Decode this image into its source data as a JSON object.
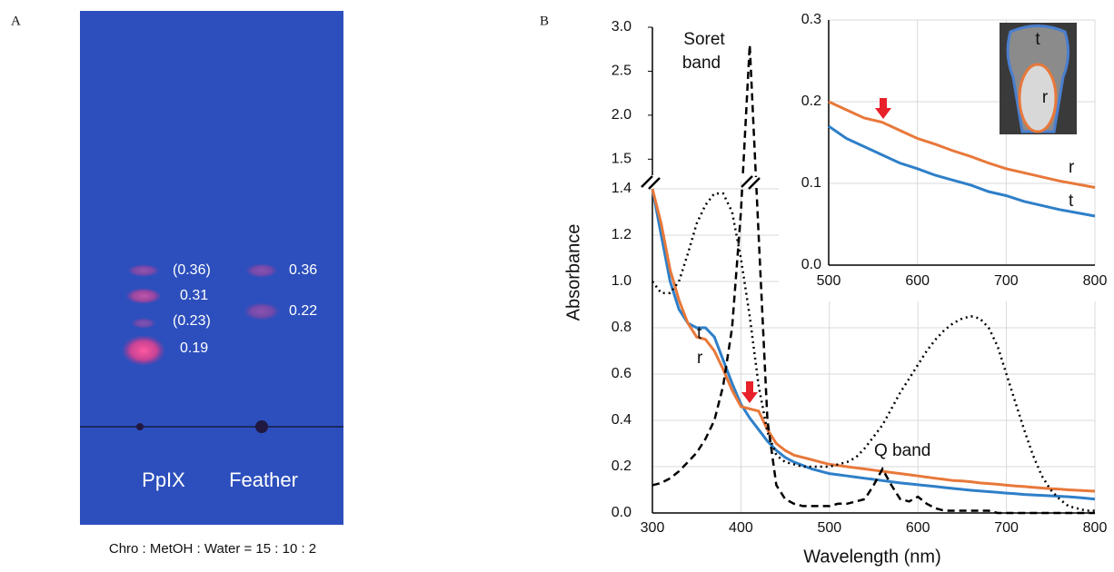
{
  "panel_a": {
    "label": "A",
    "lanes": [
      {
        "name": "PpIX",
        "rf_labels": [
          "(0.36)",
          "0.31",
          "(0.23)",
          "0.19"
        ]
      },
      {
        "name": "Feather",
        "rf_labels": [
          "0.36",
          "0.22"
        ]
      }
    ],
    "caption": "Chro : MetOH : Water = 15 : 10 : 2"
  },
  "chart_data": [
    {
      "type": "line",
      "panel_label": "B",
      "xlabel": "Wavelength (nm)",
      "ylabel": "Absorbance",
      "grid": true,
      "xlim": [
        300,
        800
      ],
      "xticks": [
        300,
        400,
        500,
        600,
        700,
        800
      ],
      "ylim": [
        0,
        1.4
      ],
      "yticks": [
        {
          "value": 0,
          "label": "0.0"
        },
        0.2,
        0.4,
        0.6,
        0.8,
        {
          "value": 1,
          "label": "1.0"
        },
        1.2,
        1.4
      ],
      "upper_ylim": [
        1.4,
        3.0
      ],
      "upper_yticks": [
        1.5,
        {
          "value": 2,
          "label": "2.0"
        },
        2.5,
        {
          "value": 3,
          "label": "3.0"
        }
      ],
      "annotations": [
        "Soret",
        "band",
        "Q band"
      ],
      "x": [
        300,
        310,
        320,
        330,
        340,
        350,
        360,
        370,
        380,
        390,
        400,
        410,
        420,
        430,
        440,
        450,
        460,
        470,
        480,
        490,
        500,
        510,
        520,
        530,
        540,
        550,
        560,
        570,
        580,
        590,
        600,
        610,
        620,
        630,
        640,
        650,
        660,
        670,
        680,
        690,
        700,
        710,
        720,
        730,
        740,
        750,
        760,
        770,
        780,
        790,
        800
      ],
      "series": [
        {
          "name": "t",
          "color": "#2e7fc8",
          "style": "solid",
          "values": [
            1.4,
            1.2,
            1.0,
            0.88,
            0.82,
            0.8,
            0.8,
            0.76,
            0.66,
            0.56,
            0.47,
            0.41,
            0.36,
            0.31,
            0.27,
            0.24,
            0.22,
            0.205,
            0.19,
            0.18,
            0.17,
            0.165,
            0.16,
            0.155,
            0.15,
            0.145,
            0.14,
            0.135,
            0.13,
            0.126,
            0.122,
            0.118,
            0.114,
            0.11,
            0.106,
            0.102,
            0.098,
            0.095,
            0.092,
            0.089,
            0.086,
            0.083,
            0.08,
            0.078,
            0.076,
            0.074,
            0.072,
            0.07,
            0.067,
            0.064,
            0.06
          ]
        },
        {
          "name": "r",
          "color": "#e8783a",
          "style": "solid",
          "values": [
            1.4,
            1.25,
            1.05,
            0.92,
            0.82,
            0.76,
            0.75,
            0.7,
            0.62,
            0.53,
            0.46,
            0.45,
            0.44,
            0.36,
            0.3,
            0.27,
            0.25,
            0.24,
            0.23,
            0.22,
            0.21,
            0.205,
            0.2,
            0.195,
            0.19,
            0.185,
            0.18,
            0.175,
            0.17,
            0.165,
            0.16,
            0.155,
            0.15,
            0.145,
            0.14,
            0.138,
            0.135,
            0.13,
            0.127,
            0.124,
            0.12,
            0.117,
            0.114,
            0.111,
            0.108,
            0.105,
            0.103,
            0.1,
            0.098,
            0.096,
            0.094
          ]
        },
        {
          "color": "#000000",
          "style": "dashed",
          "values": [
            0.12,
            0.13,
            0.15,
            0.18,
            0.22,
            0.26,
            0.32,
            0.4,
            0.55,
            0.8,
            1.3,
            2.8,
            1.2,
            0.4,
            0.12,
            0.06,
            0.04,
            0.03,
            0.03,
            0.03,
            0.03,
            0.04,
            0.04,
            0.05,
            0.06,
            0.12,
            0.19,
            0.12,
            0.06,
            0.05,
            0.07,
            0.04,
            0.02,
            0.01,
            0.01,
            0.01,
            0.01,
            0.01,
            0.01,
            0,
            0,
            0,
            0,
            0,
            0,
            0,
            0,
            0,
            0,
            0,
            0
          ]
        },
        {
          "color": "#000000",
          "style": "dotted",
          "values": [
            1.0,
            0.95,
            0.95,
            1.0,
            1.12,
            1.25,
            1.33,
            1.38,
            1.38,
            1.3,
            1.1,
            0.85,
            0.55,
            0.35,
            0.25,
            0.22,
            0.21,
            0.2,
            0.2,
            0.2,
            0.2,
            0.21,
            0.22,
            0.24,
            0.28,
            0.33,
            0.38,
            0.45,
            0.52,
            0.58,
            0.64,
            0.7,
            0.75,
            0.79,
            0.82,
            0.84,
            0.85,
            0.84,
            0.8,
            0.72,
            0.6,
            0.48,
            0.36,
            0.25,
            0.16,
            0.1,
            0.06,
            0.03,
            0.02,
            0.01,
            0.01
          ]
        }
      ]
    },
    {
      "type": "line",
      "grid": true,
      "image_labels": [
        "t",
        "r"
      ],
      "xlim": [
        500,
        800
      ],
      "xticks": [
        500,
        600,
        700,
        800
      ],
      "ylim": [
        0,
        0.3
      ],
      "yticks": [
        {
          "value": 0,
          "label": "0.0"
        },
        {
          "value": 0.1,
          "label": "0.1"
        },
        {
          "value": 0.2,
          "label": "0.2"
        },
        {
          "value": 0.3,
          "label": "0.3"
        }
      ],
      "x": [
        500,
        520,
        540,
        560,
        580,
        600,
        620,
        640,
        660,
        680,
        700,
        720,
        740,
        760,
        780,
        800
      ],
      "series": [
        {
          "name": "r",
          "color": "#e8783a",
          "style": "solid",
          "values": [
            0.2,
            0.19,
            0.18,
            0.175,
            0.165,
            0.155,
            0.148,
            0.14,
            0.133,
            0.125,
            0.118,
            0.113,
            0.108,
            0.103,
            0.099,
            0.095
          ]
        },
        {
          "name": "t",
          "color": "#2e7fc8",
          "style": "solid",
          "values": [
            0.17,
            0.155,
            0.145,
            0.135,
            0.125,
            0.118,
            0.11,
            0.104,
            0.098,
            0.09,
            0.085,
            0.078,
            0.073,
            0.068,
            0.064,
            0.06
          ]
        }
      ]
    }
  ]
}
